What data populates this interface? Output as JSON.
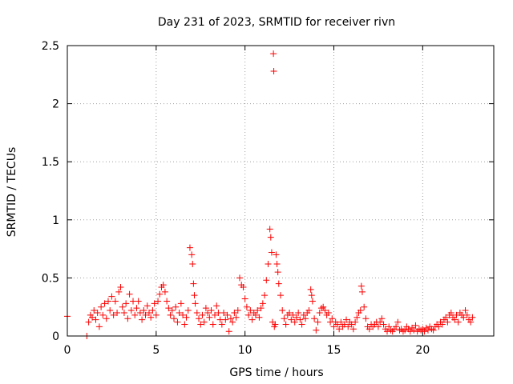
{
  "chart_data": {
    "type": "scatter",
    "title": "Day 231 of 2023, SRMTID for receiver rivn",
    "xlabel": "GPS time / hours",
    "ylabel": "SRMTID / TECUs",
    "xlim": [
      0,
      24
    ],
    "ylim": [
      0,
      2.5
    ],
    "x_ticks": [
      0,
      5,
      10,
      15,
      20
    ],
    "y_ticks": [
      0,
      0.5,
      1,
      1.5,
      2,
      2.5
    ],
    "x_tick_labels": [
      "0",
      "5",
      "10",
      "15",
      "20"
    ],
    "y_tick_labels": [
      "0",
      "0.5",
      "1",
      "1.5",
      "2",
      "2.5"
    ],
    "grid": true,
    "marker": "+",
    "series": [
      {
        "name": "SRMTID",
        "color": "#ff0000",
        "points": [
          [
            0.0,
            0.17
          ],
          [
            1.1,
            0.0
          ],
          [
            1.2,
            0.12
          ],
          [
            1.3,
            0.18
          ],
          [
            1.4,
            0.16
          ],
          [
            1.5,
            0.22
          ],
          [
            1.6,
            0.14
          ],
          [
            1.7,
            0.2
          ],
          [
            1.8,
            0.08
          ],
          [
            1.9,
            0.25
          ],
          [
            2.0,
            0.18
          ],
          [
            2.1,
            0.28
          ],
          [
            2.2,
            0.15
          ],
          [
            2.3,
            0.3
          ],
          [
            2.4,
            0.22
          ],
          [
            2.5,
            0.34
          ],
          [
            2.6,
            0.18
          ],
          [
            2.7,
            0.3
          ],
          [
            2.8,
            0.2
          ],
          [
            2.9,
            0.38
          ],
          [
            3.0,
            0.42
          ],
          [
            3.1,
            0.25
          ],
          [
            3.2,
            0.2
          ],
          [
            3.3,
            0.28
          ],
          [
            3.4,
            0.15
          ],
          [
            3.5,
            0.36
          ],
          [
            3.6,
            0.22
          ],
          [
            3.7,
            0.3
          ],
          [
            3.8,
            0.18
          ],
          [
            3.9,
            0.24
          ],
          [
            4.0,
            0.3
          ],
          [
            4.1,
            0.2
          ],
          [
            4.2,
            0.14
          ],
          [
            4.3,
            0.22
          ],
          [
            4.4,
            0.18
          ],
          [
            4.5,
            0.26
          ],
          [
            4.6,
            0.2
          ],
          [
            4.7,
            0.16
          ],
          [
            4.8,
            0.22
          ],
          [
            4.9,
            0.28
          ],
          [
            5.0,
            0.18
          ],
          [
            5.1,
            0.3
          ],
          [
            5.2,
            0.36
          ],
          [
            5.3,
            0.42
          ],
          [
            5.4,
            0.44
          ],
          [
            5.5,
            0.38
          ],
          [
            5.6,
            0.3
          ],
          [
            5.7,
            0.24
          ],
          [
            5.8,
            0.18
          ],
          [
            5.9,
            0.22
          ],
          [
            6.0,
            0.15
          ],
          [
            6.1,
            0.25
          ],
          [
            6.2,
            0.12
          ],
          [
            6.3,
            0.2
          ],
          [
            6.4,
            0.28
          ],
          [
            6.5,
            0.18
          ],
          [
            6.6,
            0.1
          ],
          [
            6.7,
            0.16
          ],
          [
            6.8,
            0.22
          ],
          [
            6.9,
            0.76
          ],
          [
            7.0,
            0.7
          ],
          [
            7.05,
            0.62
          ],
          [
            7.1,
            0.45
          ],
          [
            7.15,
            0.35
          ],
          [
            7.2,
            0.28
          ],
          [
            7.3,
            0.2
          ],
          [
            7.4,
            0.15
          ],
          [
            7.5,
            0.1
          ],
          [
            7.6,
            0.18
          ],
          [
            7.7,
            0.12
          ],
          [
            7.8,
            0.24
          ],
          [
            7.9,
            0.2
          ],
          [
            8.0,
            0.16
          ],
          [
            8.1,
            0.22
          ],
          [
            8.2,
            0.1
          ],
          [
            8.3,
            0.18
          ],
          [
            8.4,
            0.26
          ],
          [
            8.5,
            0.2
          ],
          [
            8.6,
            0.14
          ],
          [
            8.7,
            0.1
          ],
          [
            8.8,
            0.2
          ],
          [
            8.9,
            0.14
          ],
          [
            9.0,
            0.18
          ],
          [
            9.1,
            0.04
          ],
          [
            9.2,
            0.15
          ],
          [
            9.3,
            0.12
          ],
          [
            9.4,
            0.2
          ],
          [
            9.5,
            0.16
          ],
          [
            9.6,
            0.22
          ],
          [
            9.7,
            0.5
          ],
          [
            9.8,
            0.44
          ],
          [
            9.9,
            0.42
          ],
          [
            10.0,
            0.32
          ],
          [
            10.1,
            0.25
          ],
          [
            10.2,
            0.18
          ],
          [
            10.3,
            0.22
          ],
          [
            10.4,
            0.14
          ],
          [
            10.5,
            0.2
          ],
          [
            10.6,
            0.18
          ],
          [
            10.7,
            0.22
          ],
          [
            10.8,
            0.16
          ],
          [
            10.9,
            0.24
          ],
          [
            11.0,
            0.28
          ],
          [
            11.1,
            0.35
          ],
          [
            11.2,
            0.48
          ],
          [
            11.3,
            0.62
          ],
          [
            11.4,
            0.92
          ],
          [
            11.45,
            0.85
          ],
          [
            11.5,
            0.72
          ],
          [
            11.55,
            0.12
          ],
          [
            11.6,
            2.43
          ],
          [
            11.62,
            2.28
          ],
          [
            11.65,
            0.08
          ],
          [
            11.7,
            0.1
          ],
          [
            11.75,
            0.7
          ],
          [
            11.8,
            0.62
          ],
          [
            11.85,
            0.55
          ],
          [
            11.9,
            0.45
          ],
          [
            12.0,
            0.35
          ],
          [
            12.1,
            0.22
          ],
          [
            12.2,
            0.15
          ],
          [
            12.3,
            0.1
          ],
          [
            12.4,
            0.18
          ],
          [
            12.5,
            0.2
          ],
          [
            12.6,
            0.14
          ],
          [
            12.7,
            0.18
          ],
          [
            12.8,
            0.12
          ],
          [
            12.9,
            0.16
          ],
          [
            13.0,
            0.2
          ],
          [
            13.1,
            0.14
          ],
          [
            13.2,
            0.1
          ],
          [
            13.3,
            0.18
          ],
          [
            13.4,
            0.15
          ],
          [
            13.5,
            0.2
          ],
          [
            13.6,
            0.22
          ],
          [
            13.7,
            0.4
          ],
          [
            13.75,
            0.35
          ],
          [
            13.8,
            0.3
          ],
          [
            13.9,
            0.15
          ],
          [
            14.0,
            0.05
          ],
          [
            14.1,
            0.12
          ],
          [
            14.2,
            0.2
          ],
          [
            14.3,
            0.24
          ],
          [
            14.4,
            0.25
          ],
          [
            14.5,
            0.22
          ],
          [
            14.6,
            0.18
          ],
          [
            14.7,
            0.2
          ],
          [
            14.8,
            0.12
          ],
          [
            14.9,
            0.15
          ],
          [
            15.0,
            0.08
          ],
          [
            15.1,
            0.12
          ],
          [
            15.2,
            0.1
          ],
          [
            15.3,
            0.06
          ],
          [
            15.4,
            0.12
          ],
          [
            15.5,
            0.08
          ],
          [
            15.6,
            0.1
          ],
          [
            15.7,
            0.14
          ],
          [
            15.8,
            0.08
          ],
          [
            15.9,
            0.12
          ],
          [
            16.0,
            0.1
          ],
          [
            16.1,
            0.06
          ],
          [
            16.2,
            0.12
          ],
          [
            16.3,
            0.16
          ],
          [
            16.4,
            0.2
          ],
          [
            16.5,
            0.22
          ],
          [
            16.55,
            0.43
          ],
          [
            16.6,
            0.38
          ],
          [
            16.7,
            0.25
          ],
          [
            16.8,
            0.15
          ],
          [
            16.9,
            0.08
          ],
          [
            17.0,
            0.06
          ],
          [
            17.1,
            0.1
          ],
          [
            17.2,
            0.08
          ],
          [
            17.3,
            0.1
          ],
          [
            17.4,
            0.12
          ],
          [
            17.5,
            0.08
          ],
          [
            17.6,
            0.12
          ],
          [
            17.7,
            0.15
          ],
          [
            17.8,
            0.1
          ],
          [
            17.9,
            0.06
          ],
          [
            18.0,
            0.04
          ],
          [
            18.1,
            0.08
          ],
          [
            18.2,
            0.05
          ],
          [
            18.3,
            0.04
          ],
          [
            18.4,
            0.06
          ],
          [
            18.5,
            0.08
          ],
          [
            18.6,
            0.12
          ],
          [
            18.7,
            0.05
          ],
          [
            18.8,
            0.06
          ],
          [
            18.9,
            0.04
          ],
          [
            19.0,
            0.05
          ],
          [
            19.1,
            0.08
          ],
          [
            19.2,
            0.06
          ],
          [
            19.3,
            0.04
          ],
          [
            19.4,
            0.07
          ],
          [
            19.5,
            0.05
          ],
          [
            19.6,
            0.09
          ],
          [
            19.7,
            0.04
          ],
          [
            19.8,
            0.06
          ],
          [
            19.9,
            0.05
          ],
          [
            20.0,
            0.06
          ],
          [
            20.1,
            0.04
          ],
          [
            20.2,
            0.07
          ],
          [
            20.3,
            0.05
          ],
          [
            20.4,
            0.08
          ],
          [
            20.5,
            0.06
          ],
          [
            20.6,
            0.05
          ],
          [
            20.7,
            0.08
          ],
          [
            20.8,
            0.1
          ],
          [
            20.9,
            0.08
          ],
          [
            21.0,
            0.12
          ],
          [
            21.1,
            0.1
          ],
          [
            21.2,
            0.14
          ],
          [
            21.3,
            0.16
          ],
          [
            21.4,
            0.12
          ],
          [
            21.5,
            0.18
          ],
          [
            21.6,
            0.2
          ],
          [
            21.7,
            0.16
          ],
          [
            21.8,
            0.14
          ],
          [
            21.9,
            0.18
          ],
          [
            22.0,
            0.12
          ],
          [
            22.1,
            0.2
          ],
          [
            22.2,
            0.18
          ],
          [
            22.3,
            0.16
          ],
          [
            22.4,
            0.22
          ],
          [
            22.5,
            0.18
          ],
          [
            22.6,
            0.14
          ],
          [
            22.7,
            0.12
          ],
          [
            22.8,
            0.16
          ]
        ]
      }
    ]
  }
}
